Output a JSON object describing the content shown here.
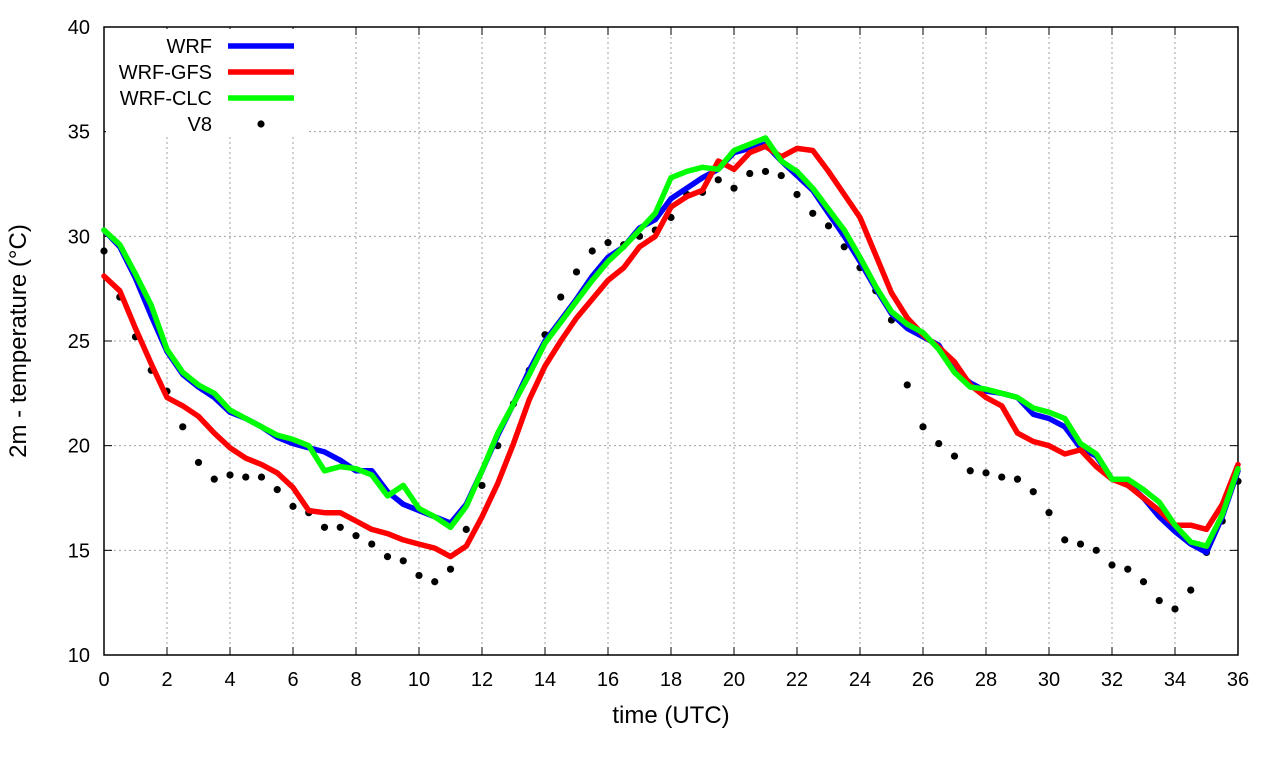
{
  "chart_data": {
    "type": "line",
    "xlabel": "time (UTC)",
    "ylabel": "2m - temperature (°C)",
    "xlim": [
      0,
      36
    ],
    "ylim": [
      10,
      40
    ],
    "xticks": [
      0,
      2,
      4,
      6,
      8,
      10,
      12,
      14,
      16,
      18,
      20,
      22,
      24,
      26,
      28,
      30,
      32,
      34,
      36
    ],
    "yticks": [
      10,
      15,
      20,
      25,
      30,
      35,
      40
    ],
    "grid": true,
    "legend": "top-left",
    "series": [
      {
        "name": "WRF",
        "style": "line",
        "color": "#0000ff",
        "x": [
          0,
          0.5,
          1,
          1.5,
          2,
          2.5,
          3,
          3.5,
          4,
          4.5,
          5,
          5.5,
          6,
          6.5,
          7,
          7.5,
          8,
          8.5,
          9,
          9.5,
          10,
          10.5,
          11,
          11.5,
          12,
          12.5,
          13,
          13.5,
          14,
          14.5,
          15,
          15.5,
          16,
          16.5,
          17,
          17.5,
          18,
          18.5,
          19,
          19.5,
          20,
          20.5,
          21,
          21.5,
          22,
          22.5,
          23,
          23.5,
          24,
          24.5,
          25,
          25.5,
          26,
          26.5,
          27,
          27.5,
          28,
          28.5,
          29,
          29.5,
          30,
          30.5,
          31,
          31.5,
          32,
          32.5,
          33,
          33.5,
          34,
          34.5,
          35,
          35.5,
          36
        ],
        "y": [
          30.3,
          29.5,
          28,
          26.2,
          24.5,
          23.4,
          22.8,
          22.3,
          21.6,
          21.3,
          20.9,
          20.4,
          20.1,
          19.9,
          19.7,
          19.3,
          18.8,
          18.8,
          17.8,
          17.2,
          16.9,
          16.6,
          16.3,
          17.2,
          18.8,
          20.5,
          22,
          23.6,
          25,
          26,
          27,
          28.1,
          29,
          29.5,
          30.4,
          30.8,
          31.8,
          32.3,
          32.8,
          33.2,
          34,
          34.2,
          34.4,
          33.6,
          32.9,
          32.2,
          31.1,
          30,
          28.8,
          27.5,
          26.3,
          25.6,
          25.2,
          24.8,
          23.6,
          23,
          22.6,
          22.5,
          22.3,
          21.5,
          21.3,
          20.9,
          19.9,
          19.5,
          18.4,
          18.2,
          17.5,
          16.6,
          15.9,
          15.3,
          14.9,
          16.6,
          18.8
        ]
      },
      {
        "name": "WRF-GFS",
        "style": "line",
        "color": "#ff0000",
        "x": [
          0,
          0.5,
          1,
          1.5,
          2,
          2.5,
          3,
          3.5,
          4,
          4.5,
          5,
          5.5,
          6,
          6.5,
          7,
          7.5,
          8,
          8.5,
          9,
          9.5,
          10,
          10.5,
          11,
          11.5,
          12,
          12.5,
          13,
          13.5,
          14,
          14.5,
          15,
          15.5,
          16,
          16.5,
          17,
          17.5,
          18,
          18.5,
          19,
          19.5,
          20,
          20.5,
          21,
          21.5,
          22,
          22.5,
          23,
          23.5,
          24,
          24.5,
          25,
          25.5,
          26,
          26.5,
          27,
          27.5,
          28,
          28.5,
          29,
          29.5,
          30,
          30.5,
          31,
          31.5,
          32,
          32.5,
          33,
          33.5,
          34,
          34.5,
          35,
          35.5,
          36
        ],
        "y": [
          28.1,
          27.4,
          25.6,
          23.9,
          22.3,
          21.9,
          21.4,
          20.6,
          19.9,
          19.4,
          19.1,
          18.7,
          18,
          16.9,
          16.8,
          16.8,
          16.4,
          16,
          15.8,
          15.5,
          15.3,
          15.1,
          14.7,
          15.2,
          16.6,
          18.2,
          20.1,
          22.2,
          23.8,
          25,
          26.1,
          27,
          27.9,
          28.5,
          29.5,
          30,
          31.4,
          31.9,
          32.2,
          33.6,
          33.2,
          34,
          34.3,
          33.8,
          34.2,
          34.1,
          33.1,
          32,
          30.9,
          29.1,
          27.3,
          26.1,
          25.3,
          24.7,
          24,
          22.9,
          22.3,
          21.9,
          20.6,
          20.2,
          20,
          19.6,
          19.8,
          19,
          18.4,
          18.1,
          17.5,
          16.9,
          16.2,
          16.2,
          16,
          17.2,
          19.1
        ]
      },
      {
        "name": "WRF-CLC",
        "style": "line",
        "color": "#00ff00",
        "x": [
          0,
          0.5,
          1,
          1.5,
          2,
          2.5,
          3,
          3.5,
          4,
          4.5,
          5,
          5.5,
          6,
          6.5,
          7,
          7.5,
          8,
          8.5,
          9,
          9.5,
          10,
          10.5,
          11,
          11.5,
          12,
          12.5,
          13,
          13.5,
          14,
          14.5,
          15,
          15.5,
          16,
          16.5,
          17,
          17.5,
          18,
          18.5,
          19,
          19.5,
          20,
          20.5,
          21,
          21.5,
          22,
          22.5,
          23,
          23.5,
          24,
          24.5,
          25,
          25.5,
          26,
          26.5,
          27,
          27.5,
          28,
          28.5,
          29,
          29.5,
          30,
          30.5,
          31,
          31.5,
          32,
          32.5,
          33,
          33.5,
          34,
          34.5,
          35,
          35.5,
          36
        ],
        "y": [
          30.3,
          29.6,
          28.2,
          26.7,
          24.6,
          23.5,
          22.9,
          22.5,
          21.7,
          21.3,
          20.9,
          20.5,
          20.3,
          20,
          18.8,
          19,
          18.9,
          18.6,
          17.6,
          18.1,
          17,
          16.6,
          16.1,
          17.1,
          18.8,
          20.6,
          22,
          23.4,
          24.9,
          25.9,
          26.9,
          27.9,
          28.8,
          29.5,
          30.3,
          31.1,
          32.8,
          33.1,
          33.3,
          33.2,
          34.1,
          34.4,
          34.7,
          33.6,
          33.1,
          32.3,
          31.3,
          30.3,
          29,
          27.6,
          26.4,
          25.8,
          25.4,
          24.6,
          23.5,
          22.8,
          22.7,
          22.5,
          22.3,
          21.8,
          21.6,
          21.3,
          20.1,
          19.6,
          18.4,
          18.4,
          17.9,
          17.3,
          16.2,
          15.4,
          15.2,
          16.7,
          18.9
        ]
      },
      {
        "name": "V8",
        "style": "points",
        "color": "#000000",
        "x": [
          0,
          0.5,
          1,
          1.5,
          2,
          2.5,
          3,
          3.5,
          4,
          4.5,
          5,
          5.5,
          6,
          6.5,
          7,
          7.5,
          8,
          8.5,
          9,
          9.5,
          10,
          10.5,
          11,
          11.5,
          12,
          12.5,
          13,
          13.5,
          14,
          14.5,
          15,
          15.5,
          16,
          16.5,
          17,
          17.5,
          18,
          18.5,
          19,
          19.5,
          20,
          20.5,
          21,
          21.5,
          22,
          22.5,
          23,
          23.5,
          24,
          24.5,
          25,
          25.5,
          26,
          26.5,
          27,
          27.5,
          28,
          28.5,
          29,
          29.5,
          30,
          30.5,
          31,
          31.5,
          32,
          32.5,
          33,
          33.5,
          34,
          34.5,
          35,
          35.5,
          36
        ],
        "y": [
          29.3,
          27.1,
          25.2,
          23.6,
          22.6,
          20.9,
          19.2,
          18.4,
          18.6,
          18.5,
          18.5,
          17.9,
          17.1,
          16.8,
          16.1,
          16.1,
          15.7,
          15.3,
          14.7,
          14.5,
          13.8,
          13.5,
          14.1,
          16,
          18.1,
          20,
          22,
          23.6,
          25.3,
          27.1,
          28.3,
          29.3,
          29.7,
          29.6,
          30,
          30.3,
          30.9,
          32,
          32.1,
          32.7,
          32.3,
          33,
          33.1,
          32.9,
          32,
          31.1,
          30.5,
          29.5,
          28.5,
          27.4,
          26,
          22.9,
          20.9,
          20.1,
          19.5,
          18.8,
          18.7,
          18.5,
          18.4,
          17.8,
          16.8,
          15.5,
          15.3,
          15,
          14.3,
          14.1,
          13.5,
          12.6,
          12.2,
          13.1,
          14.9,
          16.4,
          18.3
        ]
      }
    ]
  }
}
